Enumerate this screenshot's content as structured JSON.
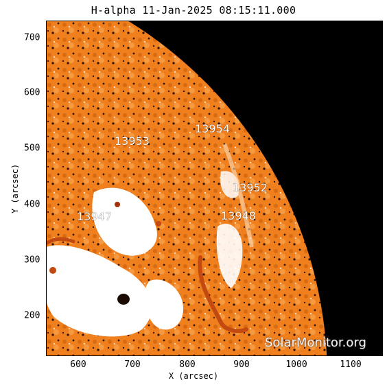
{
  "title": "H-alpha 11-Jan-2025 08:15:11.000",
  "axes": {
    "xlabel": "X (arcsec)",
    "ylabel": "Y (arcsec)",
    "xticks": [
      "600",
      "700",
      "800",
      "900",
      "1000",
      "1100"
    ],
    "yticks": [
      "700",
      "600",
      "500",
      "400",
      "300",
      "200"
    ]
  },
  "regions": [
    {
      "id": "13954",
      "label": "13954"
    },
    {
      "id": "13953",
      "label": "13953"
    },
    {
      "id": "13952",
      "label": "13952"
    },
    {
      "id": "13947",
      "label": "13947"
    },
    {
      "id": "13948",
      "label": "13948"
    }
  ],
  "watermark": "SolarMonitor.org",
  "colors": {
    "disk": "#f07f1e",
    "space": "#000000",
    "bright": "#ffffff",
    "dark": "#3a1a08"
  }
}
